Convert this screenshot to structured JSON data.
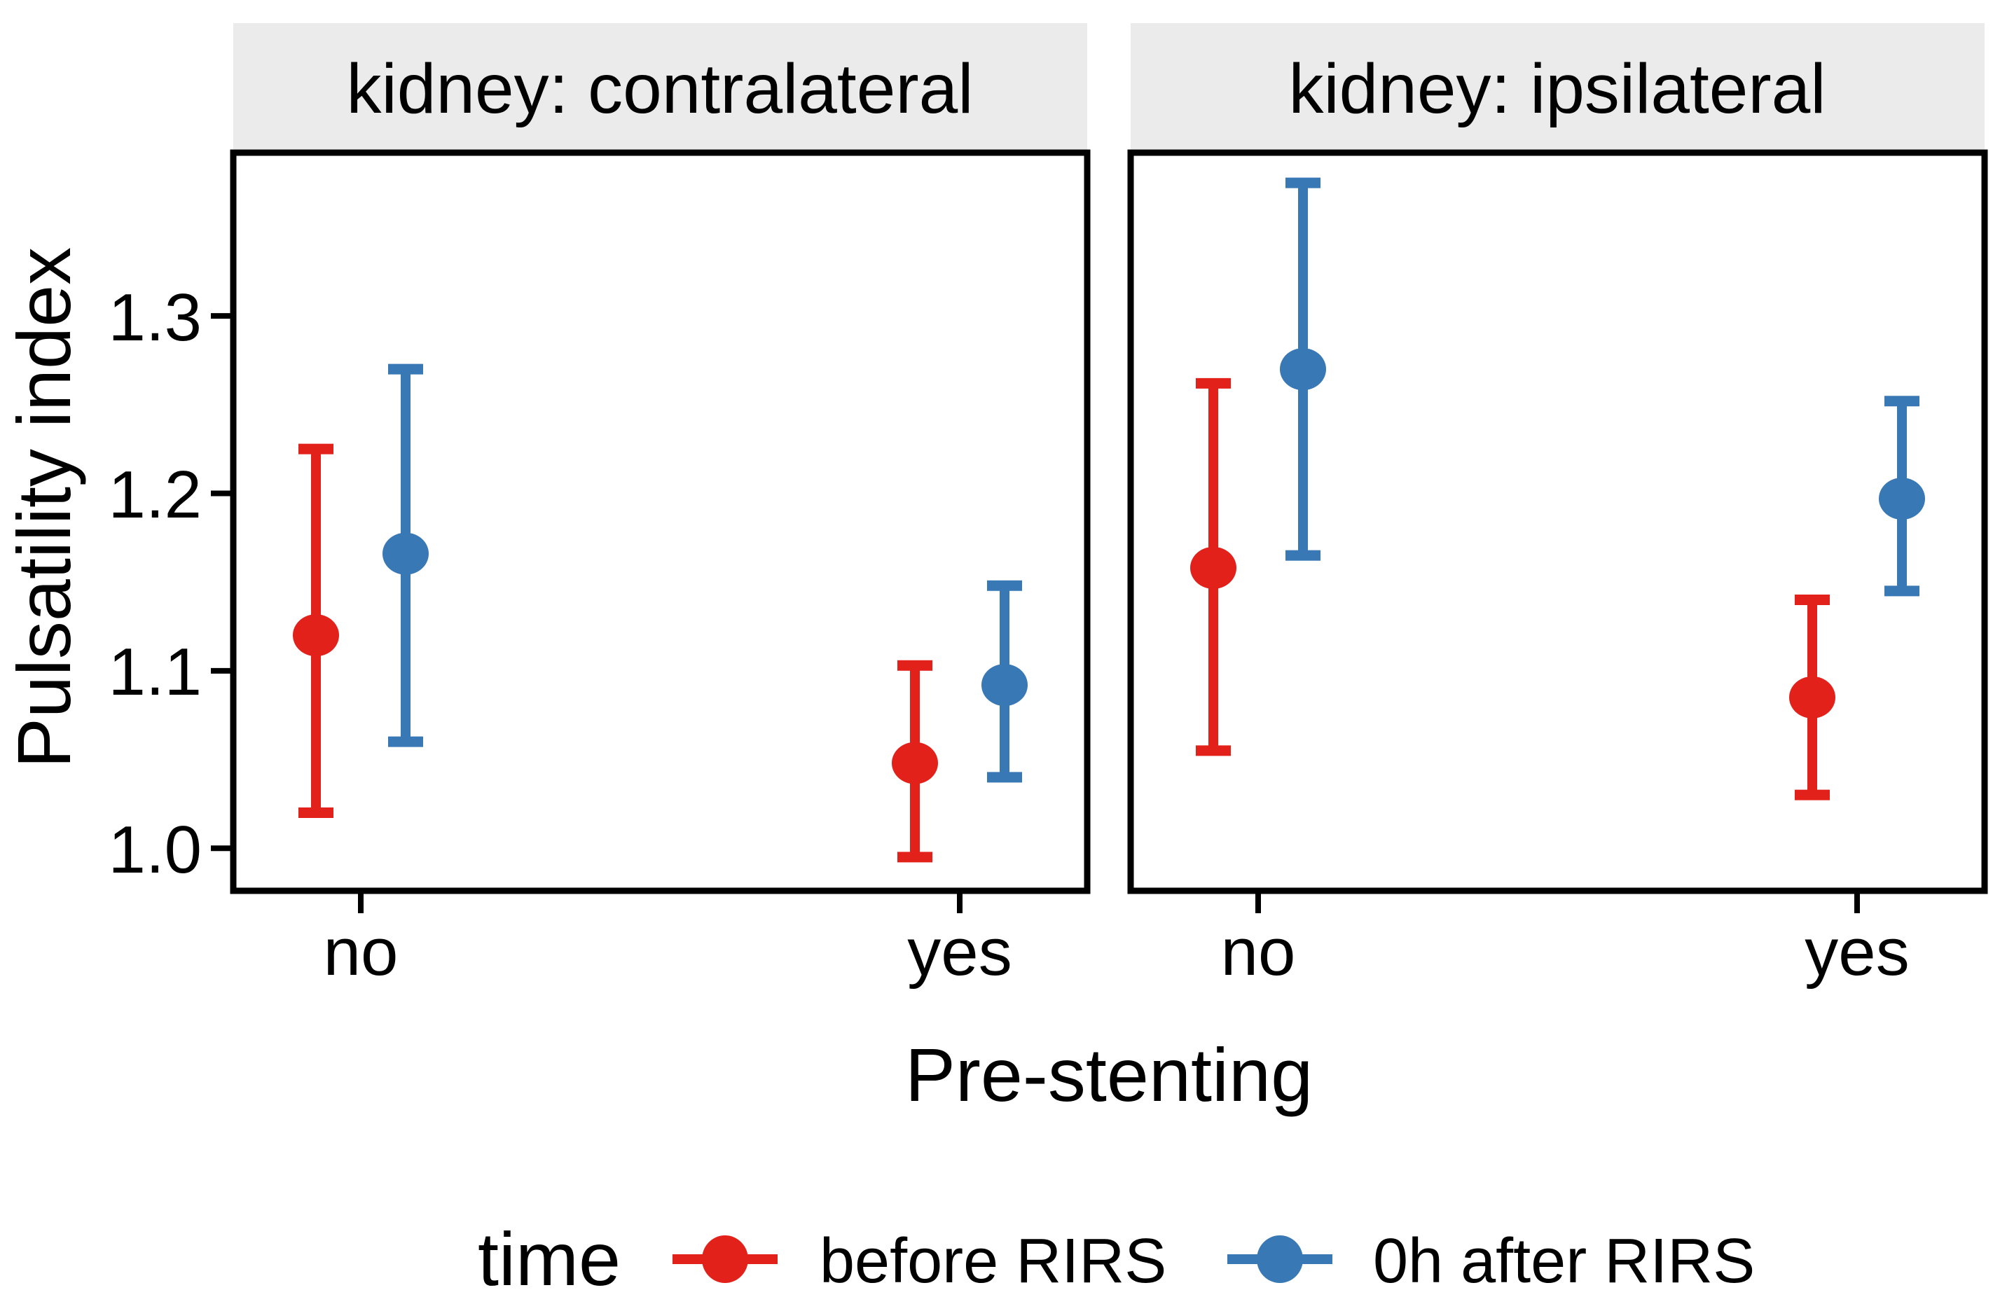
{
  "figure": {
    "background": "#FFFFFF",
    "text_color": "#000000",
    "panel_border_color": "#000000",
    "strip_background": "#EBEBEB"
  },
  "chart_data": {
    "type": "pointrange",
    "title": "",
    "xlabel": "Pre-stenting",
    "ylabel": "Pulsatility index",
    "categories": [
      "no",
      "yes"
    ],
    "yticks": [
      1.0,
      1.1,
      1.2,
      1.3
    ],
    "ytick_labels": [
      "1.0",
      "1.1",
      "1.2",
      "1.3"
    ],
    "ylim": [
      0.976,
      1.392
    ],
    "grid": "off",
    "legend": {
      "title": "time",
      "position": "bottom",
      "entries": [
        {
          "label": "before RIRS",
          "color": "#E3211B"
        },
        {
          "label": "0h after RIRS",
          "color": "#3878B4"
        }
      ]
    },
    "facets": [
      {
        "label": "kidney: contralateral",
        "series": [
          {
            "name": "before RIRS",
            "color": "#E3211B",
            "points": [
              {
                "category": "no",
                "mean": 1.12,
                "lo": 1.02,
                "hi": 1.225
              },
              {
                "category": "yes",
                "mean": 1.048,
                "lo": 0.995,
                "hi": 1.103
              }
            ]
          },
          {
            "name": "0h after RIRS",
            "color": "#3878B4",
            "points": [
              {
                "category": "no",
                "mean": 1.166,
                "lo": 1.06,
                "hi": 1.27
              },
              {
                "category": "yes",
                "mean": 1.092,
                "lo": 1.04,
                "hi": 1.148
              }
            ]
          }
        ]
      },
      {
        "label": "kidney: ipsilateral",
        "series": [
          {
            "name": "before RIRS",
            "color": "#E3211B",
            "points": [
              {
                "category": "no",
                "mean": 1.158,
                "lo": 1.055,
                "hi": 1.262
              },
              {
                "category": "yes",
                "mean": 1.085,
                "lo": 1.03,
                "hi": 1.14
              }
            ]
          },
          {
            "name": "0h after RIRS",
            "color": "#3878B4",
            "points": [
              {
                "category": "no",
                "mean": 1.27,
                "lo": 1.165,
                "hi": 1.375
              },
              {
                "category": "yes",
                "mean": 1.197,
                "lo": 1.145,
                "hi": 1.252
              }
            ]
          }
        ]
      }
    ]
  }
}
